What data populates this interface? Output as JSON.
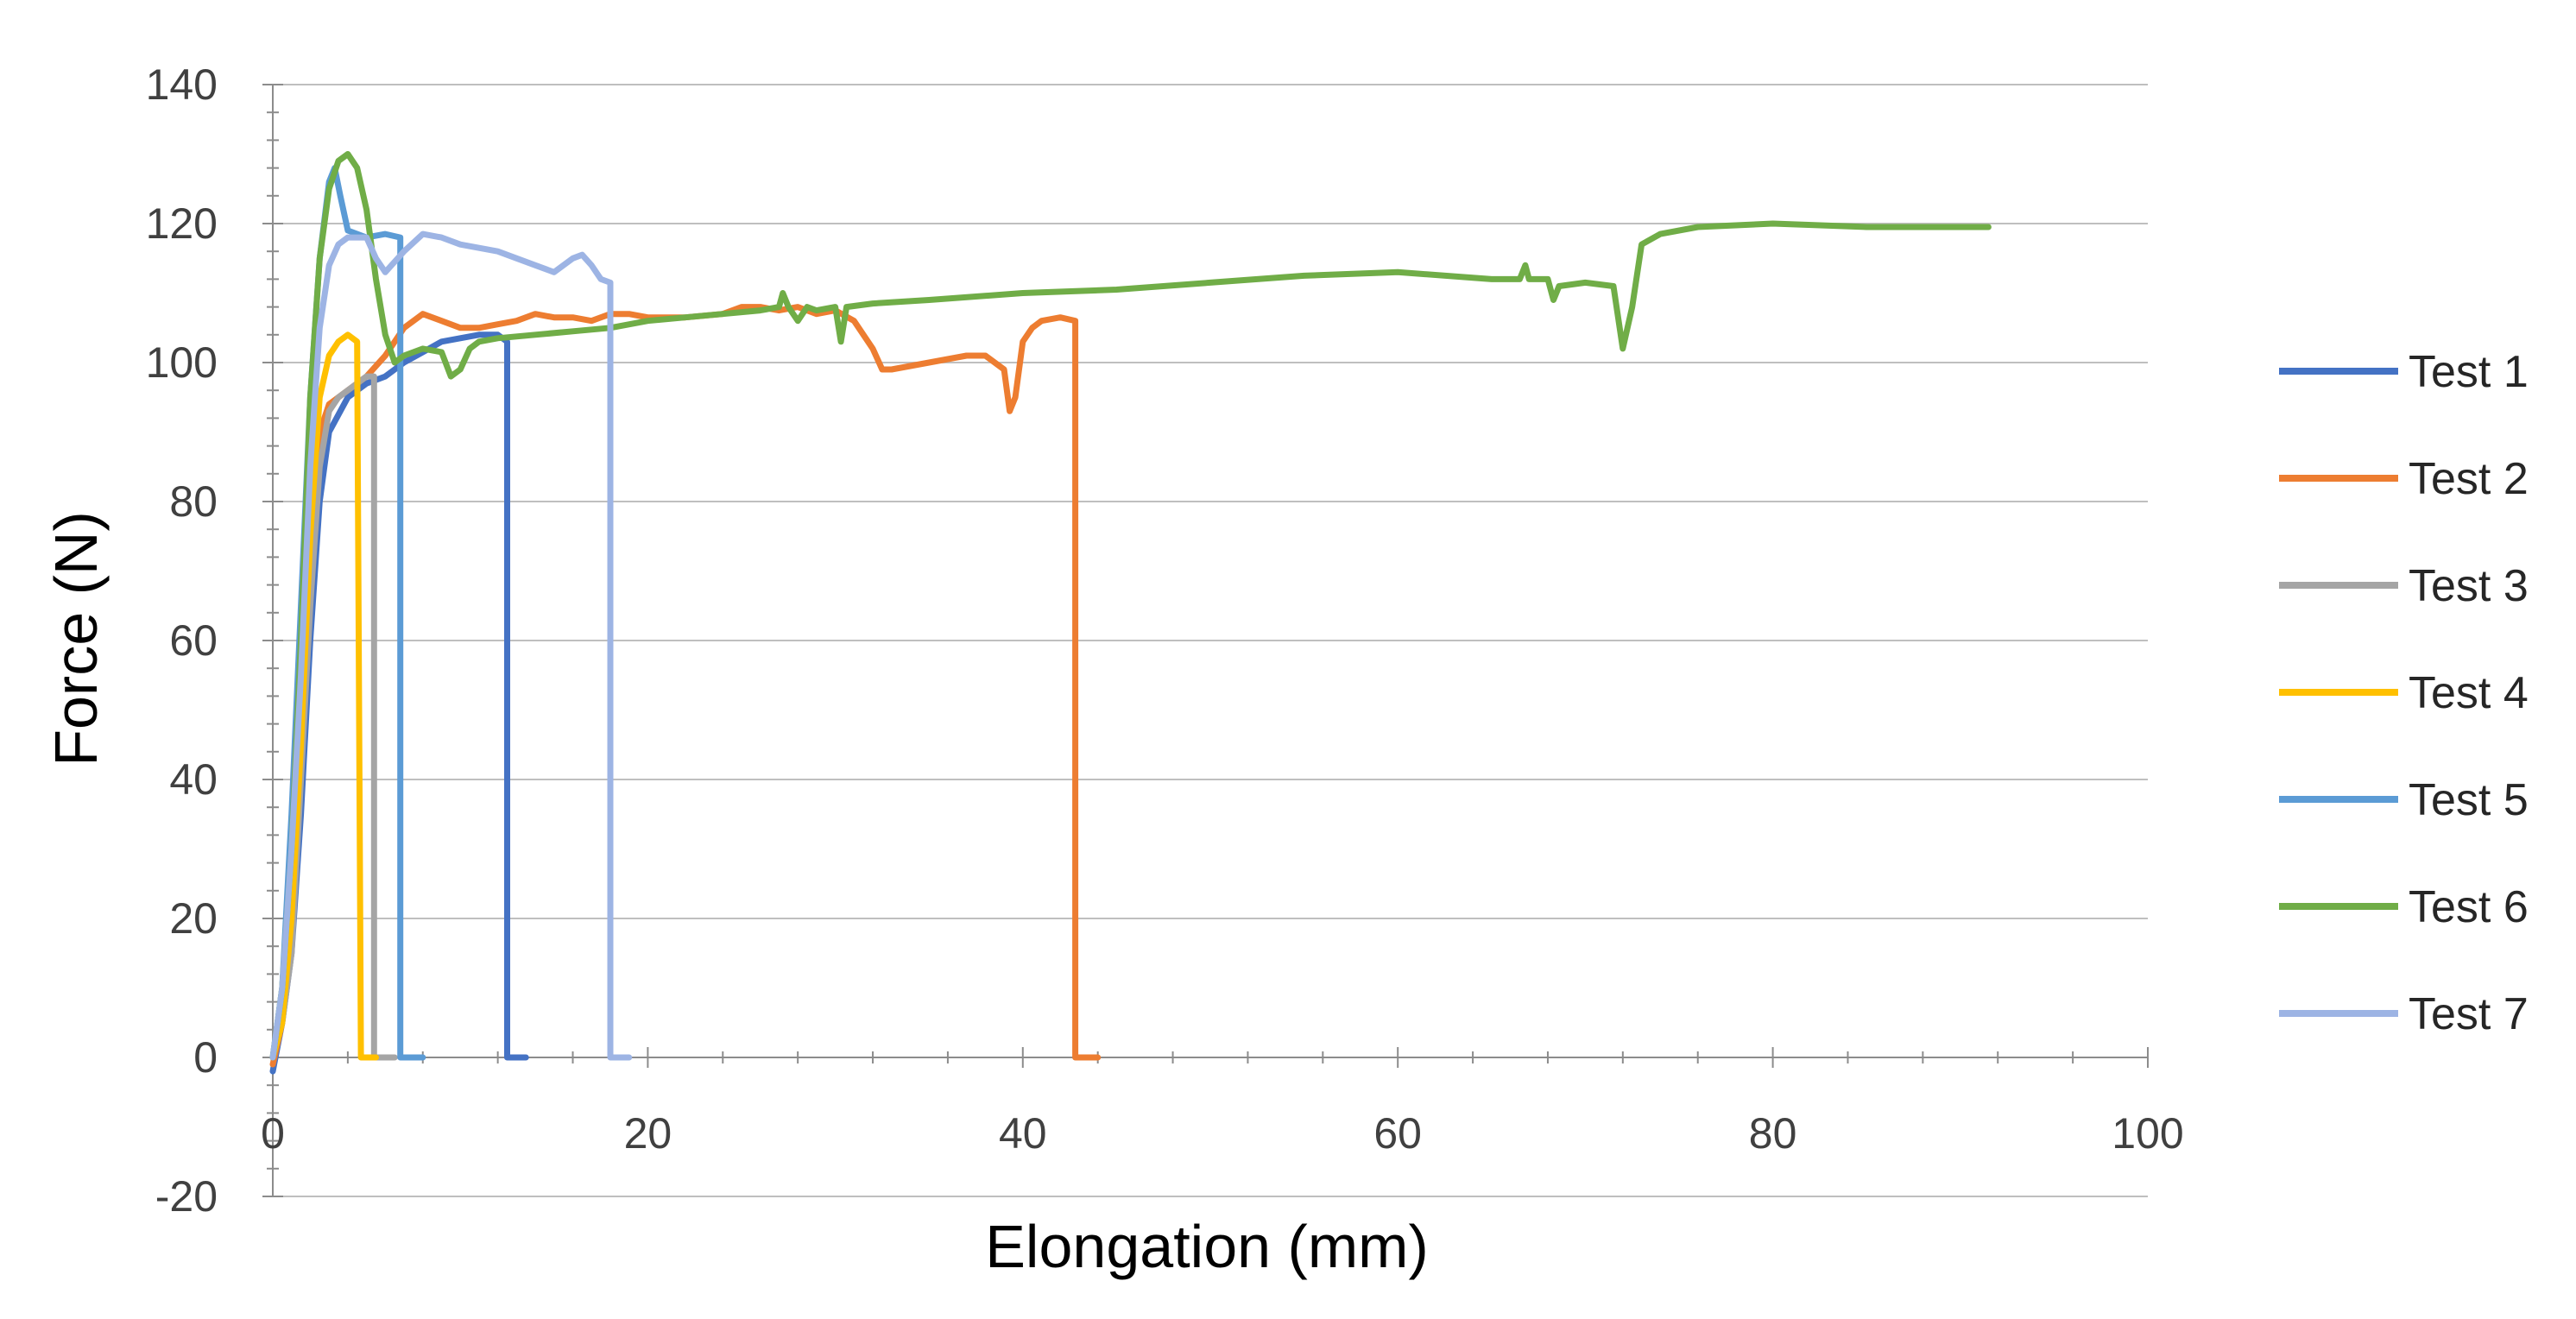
{
  "chart_data": {
    "type": "line",
    "title": "",
    "xlabel": "Elongation (mm)",
    "ylabel": "Force (N)",
    "xlim": [
      0,
      100
    ],
    "ylim": [
      -20,
      140
    ],
    "x_ticks": [
      "0",
      "20",
      "40",
      "60",
      "80",
      "100"
    ],
    "y_ticks": [
      "140",
      "120",
      "100",
      "80",
      "60",
      "40",
      "20",
      "0",
      "-20"
    ],
    "grid": "horizontal major",
    "legend_position": "right",
    "series": [
      {
        "name": "Test 1",
        "color": "#4472C4",
        "points": [
          [
            0,
            -2
          ],
          [
            0.5,
            5
          ],
          [
            1,
            15
          ],
          [
            1.5,
            35
          ],
          [
            2,
            60
          ],
          [
            2.5,
            80
          ],
          [
            3,
            90
          ],
          [
            4,
            95
          ],
          [
            5,
            97
          ],
          [
            6,
            98
          ],
          [
            7,
            100
          ],
          [
            8,
            101.5
          ],
          [
            9,
            103
          ],
          [
            10,
            103.5
          ],
          [
            11,
            104
          ],
          [
            12,
            104
          ],
          [
            12.5,
            103
          ],
          [
            12.5,
            0
          ],
          [
            13.5,
            0
          ]
        ]
      },
      {
        "name": "Test 2",
        "color": "#ED7D31",
        "points": [
          [
            0,
            -1
          ],
          [
            0.5,
            5
          ],
          [
            1,
            20
          ],
          [
            1.5,
            45
          ],
          [
            2,
            75
          ],
          [
            2.5,
            90
          ],
          [
            3,
            94
          ],
          [
            4,
            96
          ],
          [
            5,
            98
          ],
          [
            6,
            101
          ],
          [
            7,
            105
          ],
          [
            8,
            107
          ],
          [
            9,
            106
          ],
          [
            10,
            105
          ],
          [
            11,
            105
          ],
          [
            12,
            105.5
          ],
          [
            13,
            106
          ],
          [
            14,
            107
          ],
          [
            15,
            106.5
          ],
          [
            16,
            106.5
          ],
          [
            17,
            106
          ],
          [
            18,
            107
          ],
          [
            19,
            107
          ],
          [
            20,
            106.5
          ],
          [
            22,
            106.5
          ],
          [
            24,
            107
          ],
          [
            25,
            108
          ],
          [
            26,
            108
          ],
          [
            27,
            107.5
          ],
          [
            28,
            108
          ],
          [
            29,
            107
          ],
          [
            30,
            107.5
          ],
          [
            31,
            106
          ],
          [
            32,
            102
          ],
          [
            32.5,
            99
          ],
          [
            33,
            99
          ],
          [
            34,
            99.5
          ],
          [
            35,
            100
          ],
          [
            36,
            100.5
          ],
          [
            37,
            101
          ],
          [
            38,
            101
          ],
          [
            39,
            99
          ],
          [
            39.3,
            93
          ],
          [
            39.6,
            95
          ],
          [
            40,
            103
          ],
          [
            40.5,
            105
          ],
          [
            41,
            106
          ],
          [
            42,
            106.5
          ],
          [
            42.8,
            106
          ],
          [
            42.8,
            0
          ],
          [
            44,
            0
          ]
        ]
      },
      {
        "name": "Test 3",
        "color": "#A5A5A5",
        "points": [
          [
            0,
            0
          ],
          [
            0.5,
            5
          ],
          [
            1,
            15
          ],
          [
            1.5,
            40
          ],
          [
            2,
            65
          ],
          [
            2.5,
            85
          ],
          [
            3,
            93
          ],
          [
            3.5,
            95
          ],
          [
            4,
            96
          ],
          [
            5,
            98
          ],
          [
            5.4,
            98
          ],
          [
            5.4,
            0
          ],
          [
            6.5,
            0
          ]
        ]
      },
      {
        "name": "Test 4",
        "color": "#FFC000",
        "points": [
          [
            0,
            0
          ],
          [
            0.5,
            5
          ],
          [
            1,
            20
          ],
          [
            1.5,
            45
          ],
          [
            2,
            75
          ],
          [
            2.5,
            95
          ],
          [
            3,
            101
          ],
          [
            3.5,
            103
          ],
          [
            4,
            104
          ],
          [
            4.5,
            103
          ],
          [
            4.7,
            0
          ],
          [
            5.5,
            0
          ]
        ]
      },
      {
        "name": "Test 5",
        "color": "#5B9BD5",
        "points": [
          [
            0,
            0
          ],
          [
            0.5,
            10
          ],
          [
            1,
            35
          ],
          [
            1.5,
            65
          ],
          [
            2,
            95
          ],
          [
            2.5,
            115
          ],
          [
            3,
            126
          ],
          [
            3.3,
            128
          ],
          [
            3.6,
            124
          ],
          [
            4,
            119
          ],
          [
            5,
            118
          ],
          [
            6,
            118.5
          ],
          [
            6.8,
            118
          ],
          [
            6.8,
            0
          ],
          [
            8,
            0
          ]
        ]
      },
      {
        "name": "Test 6",
        "color": "#70AD47",
        "points": [
          [
            0,
            0
          ],
          [
            0.5,
            10
          ],
          [
            1,
            30
          ],
          [
            1.5,
            60
          ],
          [
            2,
            95
          ],
          [
            2.5,
            115
          ],
          [
            3,
            125
          ],
          [
            3.5,
            129
          ],
          [
            4,
            130
          ],
          [
            4.5,
            128
          ],
          [
            5,
            122
          ],
          [
            5.5,
            112
          ],
          [
            6,
            104
          ],
          [
            6.5,
            100
          ],
          [
            7,
            101
          ],
          [
            8,
            102
          ],
          [
            9,
            101.5
          ],
          [
            9.5,
            98
          ],
          [
            10,
            99
          ],
          [
            10.5,
            102
          ],
          [
            11,
            103
          ],
          [
            12,
            103.5
          ],
          [
            14,
            104
          ],
          [
            16,
            104.5
          ],
          [
            18,
            105
          ],
          [
            20,
            106
          ],
          [
            22,
            106.5
          ],
          [
            24,
            107
          ],
          [
            26,
            107.5
          ],
          [
            27,
            108
          ],
          [
            27.2,
            110
          ],
          [
            27.5,
            108
          ],
          [
            28,
            106
          ],
          [
            28.5,
            108
          ],
          [
            29,
            107.5
          ],
          [
            30,
            108
          ],
          [
            30.3,
            103
          ],
          [
            30.6,
            108
          ],
          [
            32,
            108.5
          ],
          [
            35,
            109
          ],
          [
            40,
            110
          ],
          [
            45,
            110.5
          ],
          [
            50,
            111.5
          ],
          [
            55,
            112.5
          ],
          [
            60,
            113
          ],
          [
            65,
            112
          ],
          [
            66.5,
            112
          ],
          [
            66.8,
            114
          ],
          [
            67,
            112
          ],
          [
            68,
            112
          ],
          [
            68.3,
            109
          ],
          [
            68.6,
            111
          ],
          [
            70,
            111.5
          ],
          [
            71.5,
            111
          ],
          [
            72,
            102
          ],
          [
            72.5,
            108
          ],
          [
            73,
            117
          ],
          [
            74,
            118.5
          ],
          [
            76,
            119.5
          ],
          [
            80,
            120
          ],
          [
            85,
            119.5
          ],
          [
            87,
            119.5
          ],
          [
            90,
            119.5
          ],
          [
            91.5,
            119.5
          ]
        ]
      },
      {
        "name": "Test 7",
        "color": "#9DB4E4",
        "points": [
          [
            0,
            0
          ],
          [
            0.5,
            10
          ],
          [
            1,
            30
          ],
          [
            1.5,
            55
          ],
          [
            2,
            85
          ],
          [
            2.5,
            105
          ],
          [
            3,
            114
          ],
          [
            3.5,
            117
          ],
          [
            4,
            118
          ],
          [
            5,
            118
          ],
          [
            5.5,
            115
          ],
          [
            6,
            113
          ],
          [
            7,
            116
          ],
          [
            8,
            118.5
          ],
          [
            9,
            118
          ],
          [
            10,
            117
          ],
          [
            12,
            116
          ],
          [
            14,
            114
          ],
          [
            15,
            113
          ],
          [
            16,
            115
          ],
          [
            16.5,
            115.5
          ],
          [
            17,
            114
          ],
          [
            17.5,
            112
          ],
          [
            18,
            111.5
          ],
          [
            18,
            0
          ],
          [
            19,
            0
          ]
        ]
      }
    ]
  }
}
